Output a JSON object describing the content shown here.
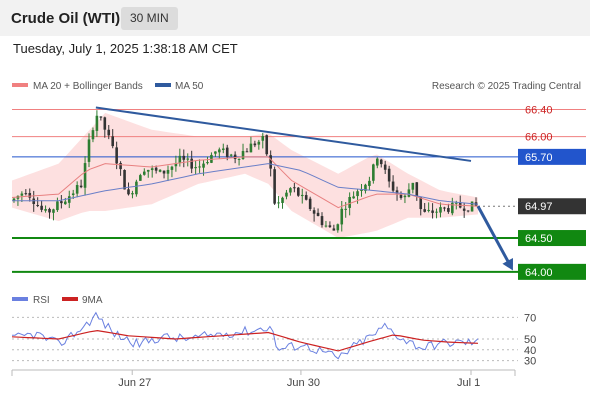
{
  "header": {
    "title": "Crude Oil (WTI)",
    "timeframe": "30 MIN",
    "datetime": "Tuesday, July 1, 2025 1:38:18 AM CET"
  },
  "legend": {
    "ma20_bollinger": "MA 20 + Bollinger Bands",
    "ma50": "MA 50",
    "credit": "Research © 2025 Trading Central"
  },
  "rsi_legend": {
    "rsi": "RSI",
    "ma9": "9MA"
  },
  "colors": {
    "resistance_line": "#f08080",
    "pivot_line": "#2255cc",
    "support_line": "#118811",
    "current_price_box": "#333333",
    "trendline": "#2f5a9e",
    "bollinger_fill": "#fde0e0",
    "candle_up": "#2e7d32",
    "candle_down": "#333333",
    "rsi_line": "#6a80e0",
    "rsi_ma_line": "#cc2222"
  },
  "chart_data": [
    {
      "type": "candlestick",
      "ylim": [
        63.85,
        66.6
      ],
      "x_ticks": [
        "Jun 27",
        "Jun 30",
        "Jul 1"
      ],
      "levels": [
        {
          "value": 66.4,
          "label": "66.40",
          "kind": "resistance"
        },
        {
          "value": 66.0,
          "label": "66.00",
          "kind": "resistance"
        },
        {
          "value": 65.7,
          "label": "65.70",
          "kind": "pivot"
        },
        {
          "value": 64.97,
          "label": "64.97",
          "kind": "current"
        },
        {
          "value": 64.5,
          "label": "64.50",
          "kind": "support"
        },
        {
          "value": 64.0,
          "label": "64.00",
          "kind": "support"
        }
      ],
      "trendline": {
        "from": {
          "bar": 0.18,
          "value": 66.43
        },
        "to": {
          "bar": 0.985,
          "value": 65.64
        }
      },
      "forecast_arrow": {
        "from": {
          "bar": 1.0,
          "value": 64.97
        },
        "to": {
          "bar": 1.075,
          "value": 64.02
        }
      },
      "anchors": [
        [
          0,
          65.05
        ],
        [
          0.03,
          65.22
        ],
        [
          0.07,
          64.85
        ],
        [
          0.11,
          65.05
        ],
        [
          0.15,
          65.3
        ],
        [
          0.165,
          65.9
        ],
        [
          0.18,
          66.35
        ],
        [
          0.2,
          66.1
        ],
        [
          0.22,
          65.75
        ],
        [
          0.25,
          65.1
        ],
        [
          0.28,
          65.55
        ],
        [
          0.32,
          65.45
        ],
        [
          0.36,
          65.65
        ],
        [
          0.4,
          65.55
        ],
        [
          0.44,
          65.8
        ],
        [
          0.48,
          65.7
        ],
        [
          0.52,
          65.9
        ],
        [
          0.54,
          65.95
        ],
        [
          0.555,
          65.5
        ],
        [
          0.565,
          64.95
        ],
        [
          0.6,
          65.25
        ],
        [
          0.64,
          64.95
        ],
        [
          0.67,
          64.7
        ],
        [
          0.69,
          64.6
        ],
        [
          0.71,
          64.95
        ],
        [
          0.74,
          65.2
        ],
        [
          0.77,
          65.4
        ],
        [
          0.785,
          65.75
        ],
        [
          0.81,
          65.3
        ],
        [
          0.84,
          65.05
        ],
        [
          0.86,
          65.35
        ],
        [
          0.88,
          64.85
        ],
        [
          0.91,
          64.9
        ],
        [
          0.94,
          64.95
        ],
        [
          0.97,
          64.97
        ],
        [
          1.0,
          64.97
        ]
      ],
      "bollinger_upper": [
        [
          0,
          65.35
        ],
        [
          0.1,
          65.6
        ],
        [
          0.16,
          66.05
        ],
        [
          0.2,
          66.35
        ],
        [
          0.3,
          66.1
        ],
        [
          0.4,
          66.0
        ],
        [
          0.5,
          66.0
        ],
        [
          0.55,
          66.05
        ],
        [
          0.6,
          65.8
        ],
        [
          0.7,
          65.45
        ],
        [
          0.78,
          65.75
        ],
        [
          0.85,
          65.45
        ],
        [
          0.92,
          65.2
        ],
        [
          1.0,
          65.1
        ]
      ],
      "bollinger_lower": [
        [
          0,
          64.95
        ],
        [
          0.1,
          64.75
        ],
        [
          0.16,
          64.9
        ],
        [
          0.2,
          64.9
        ],
        [
          0.3,
          65.0
        ],
        [
          0.4,
          65.3
        ],
        [
          0.5,
          65.45
        ],
        [
          0.55,
          65.3
        ],
        [
          0.6,
          64.9
        ],
        [
          0.7,
          64.5
        ],
        [
          0.78,
          64.6
        ],
        [
          0.85,
          64.8
        ],
        [
          0.92,
          64.8
        ],
        [
          1.0,
          64.85
        ]
      ],
      "ma20": [
        [
          0,
          65.1
        ],
        [
          0.1,
          65.15
        ],
        [
          0.16,
          65.5
        ],
        [
          0.2,
          65.6
        ],
        [
          0.3,
          65.55
        ],
        [
          0.4,
          65.65
        ],
        [
          0.5,
          65.7
        ],
        [
          0.55,
          65.7
        ],
        [
          0.6,
          65.35
        ],
        [
          0.7,
          64.95
        ],
        [
          0.78,
          65.15
        ],
        [
          0.85,
          65.15
        ],
        [
          0.92,
          65.0
        ],
        [
          1.0,
          64.97
        ]
      ],
      "ma50": [
        [
          0,
          65.05
        ],
        [
          0.1,
          65.05
        ],
        [
          0.2,
          65.2
        ],
        [
          0.3,
          65.3
        ],
        [
          0.4,
          65.45
        ],
        [
          0.5,
          65.55
        ],
        [
          0.55,
          65.6
        ],
        [
          0.62,
          65.5
        ],
        [
          0.7,
          65.25
        ],
        [
          0.78,
          65.2
        ],
        [
          0.85,
          65.15
        ],
        [
          0.92,
          65.05
        ],
        [
          1.0,
          65.0
        ]
      ]
    },
    {
      "type": "line",
      "ylim": [
        25,
        75
      ],
      "y_ticks": [
        70,
        50,
        40,
        30
      ],
      "series": [
        {
          "name": "RSI",
          "anchors": [
            [
              0,
              50
            ],
            [
              0.05,
              55
            ],
            [
              0.1,
              45
            ],
            [
              0.15,
              60
            ],
            [
              0.18,
              72
            ],
            [
              0.22,
              55
            ],
            [
              0.27,
              45
            ],
            [
              0.32,
              52
            ],
            [
              0.38,
              50
            ],
            [
              0.45,
              55
            ],
            [
              0.52,
              58
            ],
            [
              0.555,
              62
            ],
            [
              0.57,
              40
            ],
            [
              0.62,
              45
            ],
            [
              0.67,
              38
            ],
            [
              0.7,
              32
            ],
            [
              0.74,
              45
            ],
            [
              0.78,
              55
            ],
            [
              0.8,
              62
            ],
            [
              0.84,
              50
            ],
            [
              0.88,
              42
            ],
            [
              0.92,
              46
            ],
            [
              0.96,
              47
            ],
            [
              1.0,
              47
            ]
          ]
        },
        {
          "name": "9MA",
          "anchors": [
            [
              0,
              52
            ],
            [
              0.1,
              50
            ],
            [
              0.18,
              58
            ],
            [
              0.25,
              53
            ],
            [
              0.35,
              50
            ],
            [
              0.45,
              53
            ],
            [
              0.55,
              56
            ],
            [
              0.62,
              47
            ],
            [
              0.7,
              39
            ],
            [
              0.77,
              48
            ],
            [
              0.82,
              54
            ],
            [
              0.88,
              49
            ],
            [
              0.94,
              47
            ],
            [
              1.0,
              46
            ]
          ]
        }
      ]
    }
  ]
}
